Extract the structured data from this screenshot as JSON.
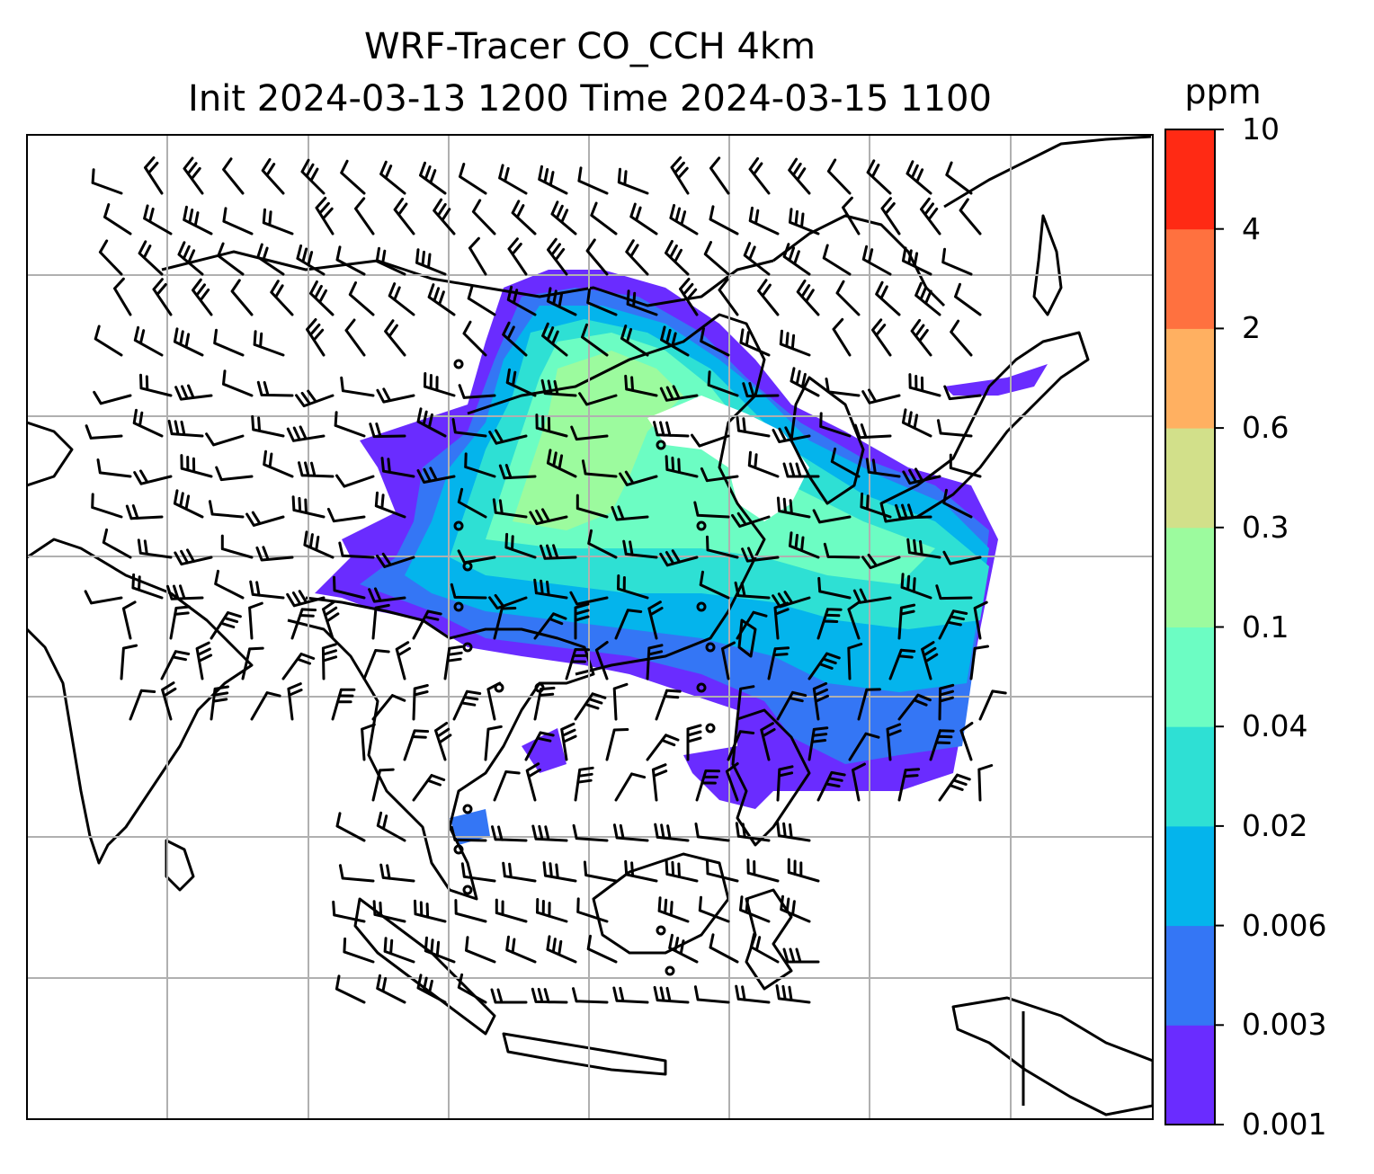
{
  "title": {
    "line1": "WRF-Tracer CO_CCH 4km",
    "line2": "Init 2024-03-13 1200 Time 2024-03-15 1100"
  },
  "colorbar": {
    "unit": "ppm",
    "levels": [
      "0.001",
      "0.003",
      "0.006",
      "0.02",
      "0.04",
      "0.1",
      "0.3",
      "0.6",
      "2",
      "4",
      "10"
    ],
    "colors": [
      "#6a2cff",
      "#3476f5",
      "#04b4ec",
      "#2ee0d4",
      "#6cfdc3",
      "#9cfb9e",
      "#d2e08a",
      "#ffb061",
      "#ff713f",
      "#ff2a14"
    ]
  },
  "map": {
    "land_outline_color": "#000000",
    "gridline_color": "#b0b0b0",
    "wind_barb_color": "#000000"
  }
}
